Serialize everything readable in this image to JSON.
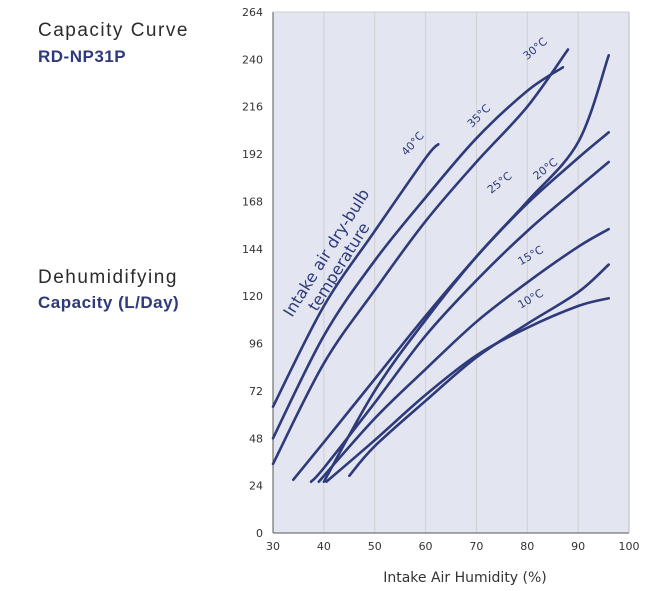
{
  "header": {
    "title": "Capacity Curve",
    "model": "RD-NP31P"
  },
  "yaxis_title": {
    "line1": "Dehumidifying",
    "line2": "Capacity (L/Day)"
  },
  "colors": {
    "plot_background": "#e3e6f1",
    "curve": "#2e3a7a",
    "grid": "#d0d0d0",
    "text": "#333333"
  },
  "chart_data": {
    "type": "line",
    "title": "Capacity Curve",
    "xlabel": "Intake Air Humidity (%)",
    "ylabel": "Capacity (L/Day)",
    "xlim": [
      30,
      100
    ],
    "ylim": [
      0,
      264
    ],
    "xticks": [
      30,
      40,
      50,
      60,
      70,
      80,
      90,
      100
    ],
    "yticks": [
      0,
      24,
      48,
      72,
      96,
      120,
      144,
      168,
      192,
      216,
      240,
      264
    ],
    "grid": "vertical",
    "annotation": {
      "line1": "Intake air dry-bulb",
      "line2": "temperature"
    },
    "series": [
      {
        "name": "40°C",
        "points": [
          [
            30,
            64
          ],
          [
            40,
            115
          ],
          [
            50,
            153
          ],
          [
            60,
            190
          ],
          [
            62.5,
            197
          ]
        ]
      },
      {
        "name": "35°C",
        "points": [
          [
            30,
            48
          ],
          [
            40,
            100
          ],
          [
            50,
            138
          ],
          [
            60,
            170
          ],
          [
            70,
            200
          ],
          [
            80,
            224
          ],
          [
            87,
            236
          ]
        ]
      },
      {
        "name": "30°C",
        "points": [
          [
            30,
            35
          ],
          [
            40,
            86
          ],
          [
            50,
            123
          ],
          [
            60,
            158
          ],
          [
            70,
            188
          ],
          [
            80,
            216
          ],
          [
            88,
            245
          ]
        ]
      },
      {
        "name": "30°C",
        "points": [
          [
            40,
            26
          ],
          [
            50,
            72
          ],
          [
            60,
            108
          ],
          [
            70,
            140
          ],
          [
            80,
            168
          ],
          [
            90,
            198
          ],
          [
            96,
            242
          ]
        ]
      },
      {
        "name": "25°C",
        "points": [
          [
            34,
            27
          ],
          [
            40,
            46
          ],
          [
            50,
            78
          ],
          [
            60,
            110
          ],
          [
            70,
            140
          ],
          [
            80,
            167
          ],
          [
            90,
            190
          ],
          [
            96,
            203
          ]
        ]
      },
      {
        "name": "20°C",
        "points": [
          [
            37.5,
            26
          ],
          [
            40,
            33
          ],
          [
            50,
            66
          ],
          [
            60,
            100
          ],
          [
            70,
            128
          ],
          [
            80,
            153
          ],
          [
            90,
            175
          ],
          [
            96,
            188
          ]
        ]
      },
      {
        "name": "15°C",
        "points": [
          [
            39,
            26
          ],
          [
            50,
            58
          ],
          [
            60,
            83
          ],
          [
            70,
            107
          ],
          [
            80,
            127
          ],
          [
            90,
            145
          ],
          [
            96,
            154
          ]
        ]
      },
      {
        "name": "10°C",
        "points": [
          [
            45,
            29
          ],
          [
            50,
            44
          ],
          [
            60,
            67
          ],
          [
            70,
            89
          ],
          [
            80,
            106
          ],
          [
            90,
            122
          ],
          [
            96,
            136
          ]
        ]
      }
    ],
    "extra_series": [
      {
        "name": "",
        "points": [
          [
            40.5,
            26
          ],
          [
            50,
            47
          ],
          [
            60,
            70
          ],
          [
            70,
            90
          ],
          [
            80,
            104
          ],
          [
            90,
            115
          ],
          [
            96,
            119
          ]
        ]
      }
    ]
  }
}
